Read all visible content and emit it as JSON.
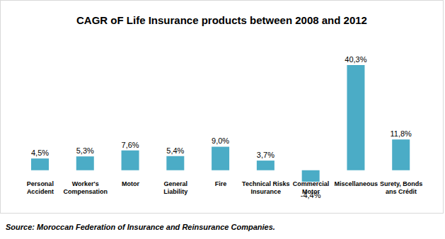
{
  "chart_data": {
    "type": "bar",
    "title": "CAGR oF Life Insurance products between 2008 and 2012",
    "categories": [
      "Personal Accident",
      "Worker's Compensation",
      "Motor",
      "General Liability",
      "Fire",
      "Technical Risks Insurance",
      "Commercial Motor",
      "Miscellaneous",
      "Surety, Bonds ans Crédit"
    ],
    "values": [
      4.5,
      5.3,
      7.6,
      5.4,
      9.0,
      3.7,
      -4.4,
      40.3,
      11.8
    ],
    "value_labels": [
      "4,5%",
      "5,3%",
      "7,6%",
      "5,4%",
      "9,0%",
      "3,7%",
      "-4,4%",
      "40,3%",
      "11,8%"
    ],
    "color": "#4bacc6",
    "data_labels": true,
    "tick_labels": "x",
    "grid": false,
    "source": "Source: Moroccan Federation of Insurance and Reinsurance Companies."
  }
}
